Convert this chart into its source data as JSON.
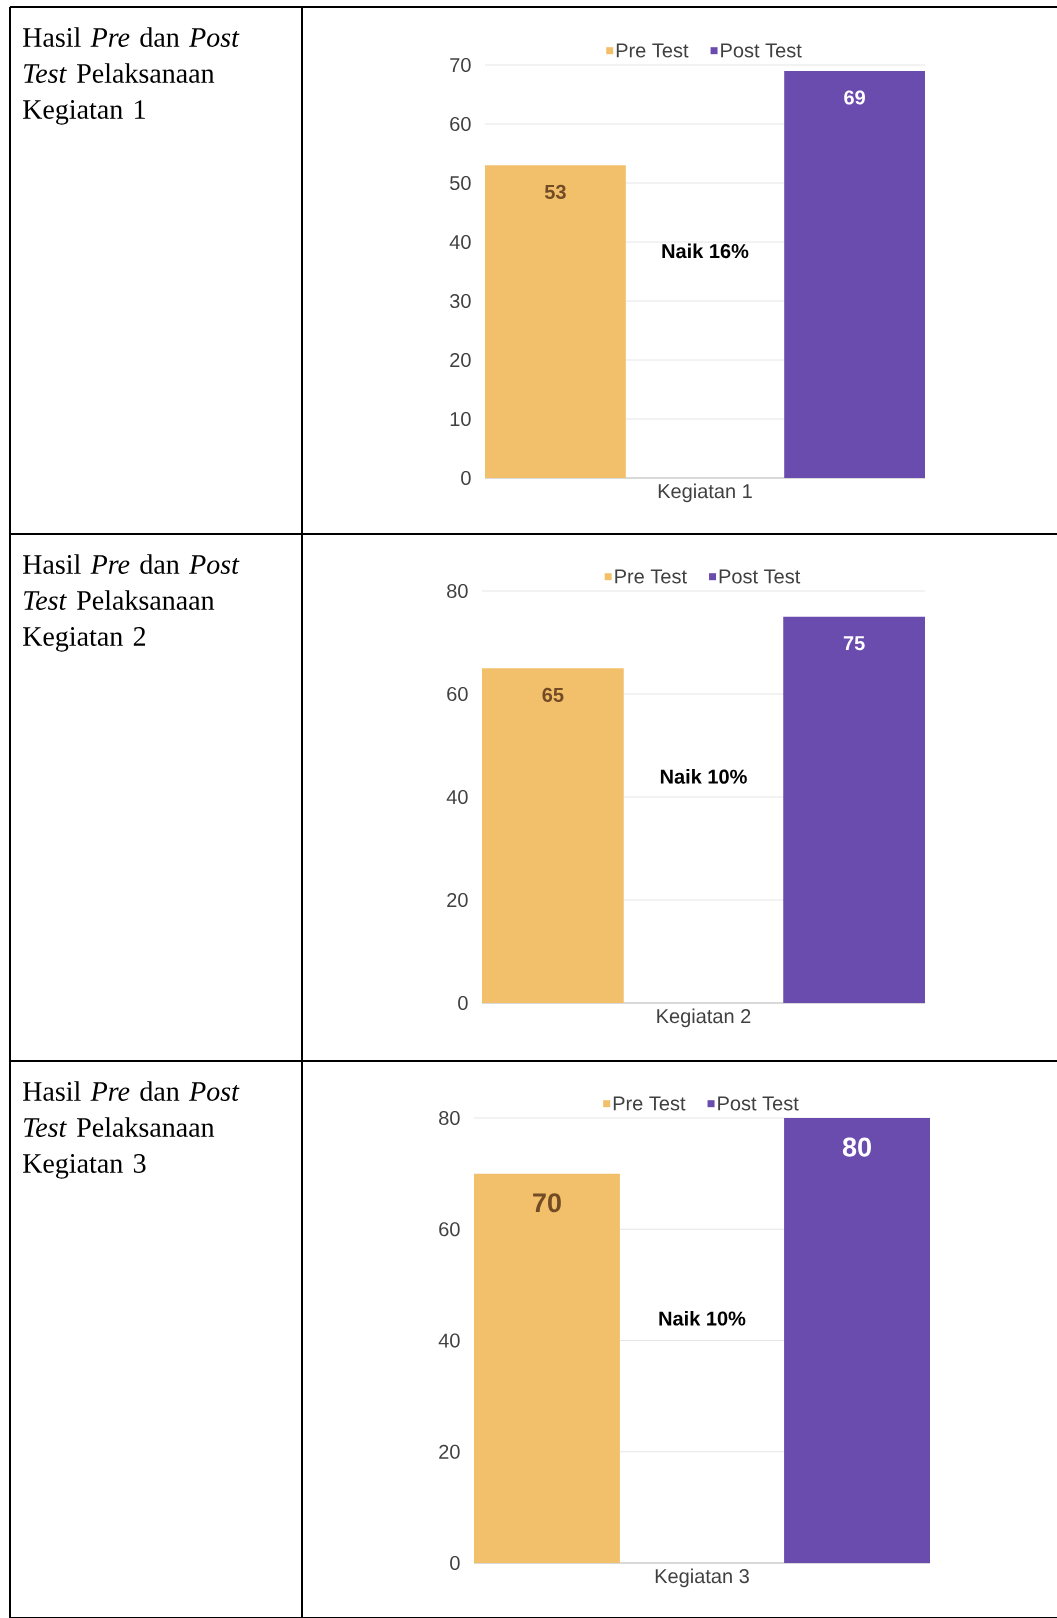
{
  "chart_data": [
    {
      "type": "bar",
      "title": "Hasil *Pre* dan *Post Test* Pelaksanaan Kegiatan 1",
      "categories": [
        "Kegiatan 1"
      ],
      "series": [
        {
          "name": "Pre Test",
          "color": "#f2c06b",
          "values": [
            53
          ]
        },
        {
          "name": "Post Test",
          "color": "#6a4caf",
          "values": [
            69
          ]
        }
      ],
      "ylim": [
        0,
        70
      ],
      "yticks": [
        0,
        10,
        20,
        30,
        40,
        50,
        60,
        70
      ],
      "grid": "y",
      "legend": "top",
      "data_labels": true,
      "annotations": [
        "Naik 16%"
      ]
    },
    {
      "type": "bar",
      "title": "Hasil *Pre* dan *Post Test* Pelaksanaan Kegiatan 2",
      "categories": [
        "Kegiatan 2"
      ],
      "series": [
        {
          "name": "Pre Test",
          "color": "#f2c06b",
          "values": [
            65
          ]
        },
        {
          "name": "Post Test",
          "color": "#6a4caf",
          "values": [
            75
          ]
        }
      ],
      "ylim": [
        0,
        80
      ],
      "yticks": [
        0,
        20,
        40,
        60,
        80
      ],
      "grid": "y",
      "legend": "top",
      "data_labels": true,
      "annotations": [
        "Naik 10%"
      ]
    },
    {
      "type": "bar",
      "title": "Hasil *Pre* dan *Post Test* Pelaksanaan Kegiatan 3",
      "categories": [
        "Kegiatan 3"
      ],
      "series": [
        {
          "name": "Pre Test",
          "color": "#f2c06b",
          "values": [
            70
          ]
        },
        {
          "name": "Post Test",
          "color": "#6a4caf",
          "values": [
            80
          ]
        }
      ],
      "ylim": [
        0,
        80
      ],
      "yticks": [
        0,
        20,
        40,
        60,
        80
      ],
      "grid": "y",
      "legend": "top",
      "data_labels": true,
      "annotations": [
        "Naik 10%"
      ]
    }
  ]
}
